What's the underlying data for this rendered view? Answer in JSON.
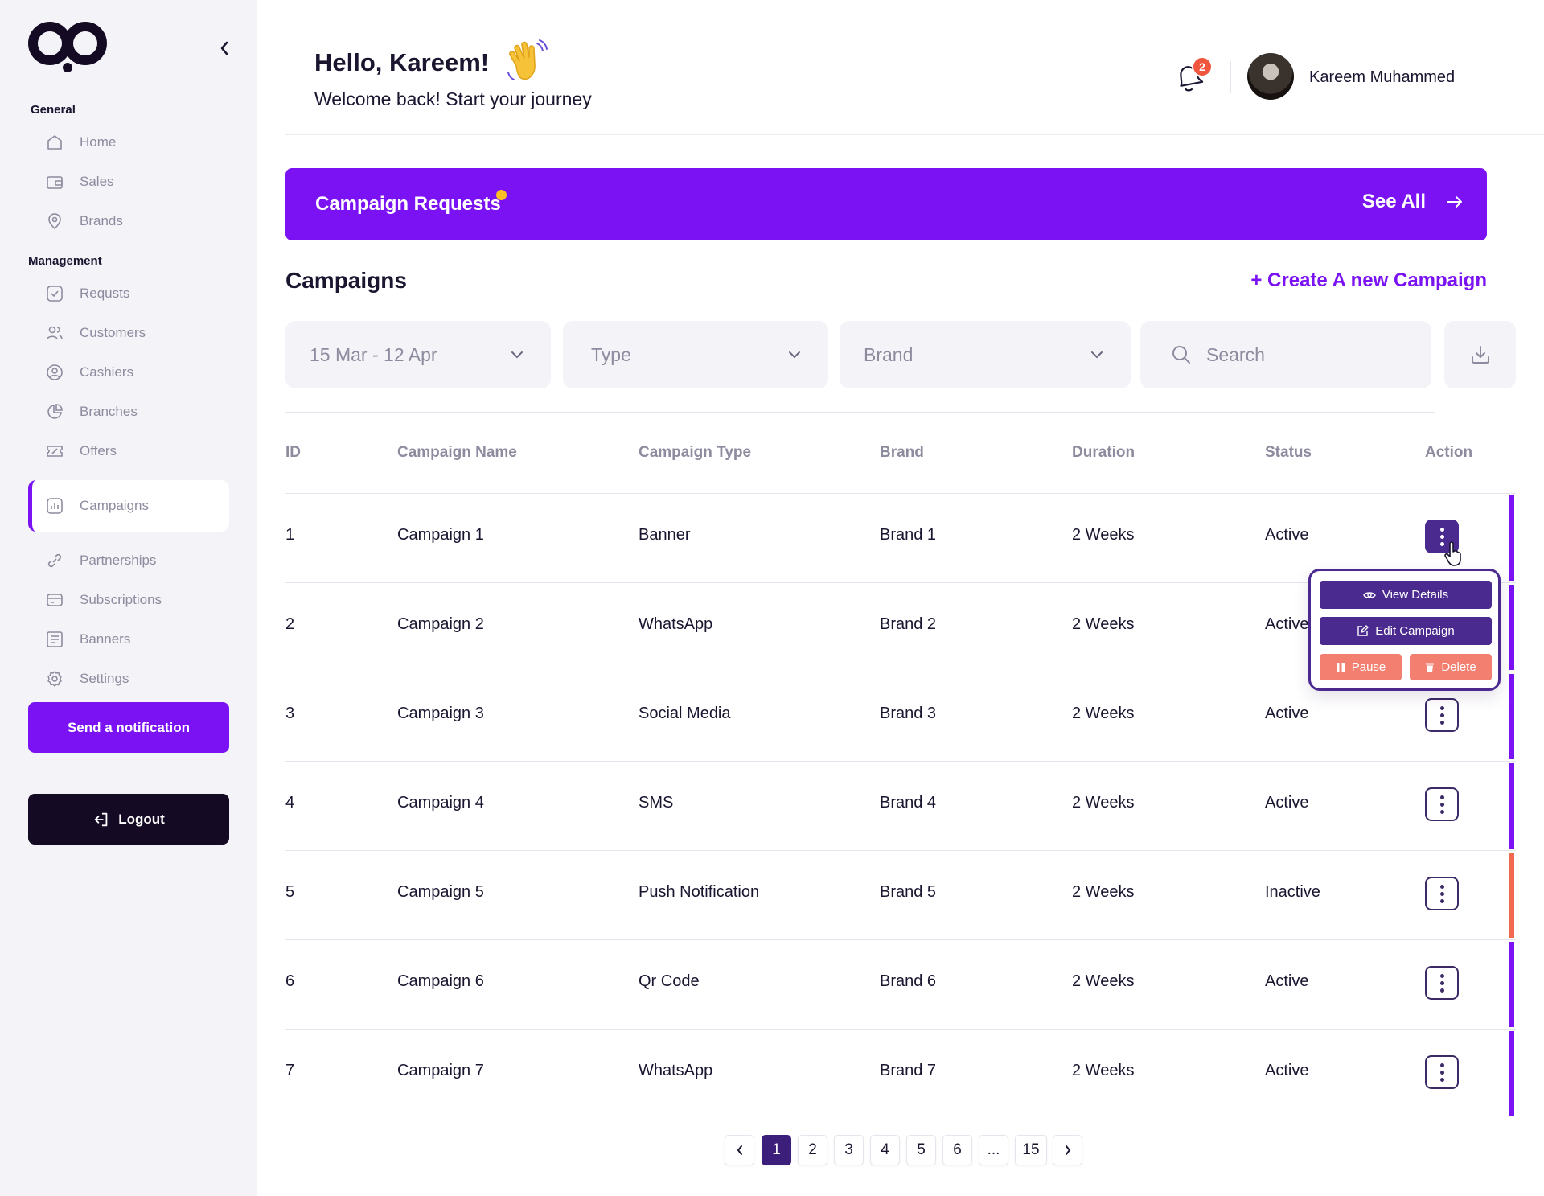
{
  "sidebar": {
    "sections": {
      "general": "General",
      "management": "Management"
    },
    "general_items": [
      {
        "label": "Home",
        "icon": "home-icon"
      },
      {
        "label": "Sales",
        "icon": "wallet-icon"
      },
      {
        "label": "Brands",
        "icon": "tag-icon"
      }
    ],
    "management_items": [
      {
        "label": "Requsts",
        "icon": "checkbox-icon"
      },
      {
        "label": "Customers",
        "icon": "users-icon"
      },
      {
        "label": "Cashiers",
        "icon": "user-circle-icon"
      },
      {
        "label": "Branches",
        "icon": "pie-icon"
      },
      {
        "label": "Offers",
        "icon": "ticket-icon"
      },
      {
        "label": "Campaigns",
        "icon": "chart-icon",
        "active": true
      },
      {
        "label": "Partnerships",
        "icon": "link-icon"
      },
      {
        "label": "Subscriptions",
        "icon": "card-icon"
      },
      {
        "label": "Banners",
        "icon": "newspaper-icon"
      },
      {
        "label": "Settings",
        "icon": "gear-icon"
      }
    ],
    "send_notification": "Send a notification",
    "logout": "Logout"
  },
  "header": {
    "greeting": "Hello, Kareem!",
    "subtitle": "Welcome back! Start your journey",
    "notification_count": "2",
    "user_name": "Kareem Muhammed"
  },
  "banner": {
    "title": "Campaign Requests",
    "see_all": "See All",
    "color": "#7a12f3"
  },
  "campaigns": {
    "title": "Campaigns",
    "create_link": "+ Create A new Campaign",
    "filters": {
      "date": "15 Mar - 12 Apr",
      "type": "Type",
      "brand": "Brand",
      "search_placeholder": "Search"
    },
    "columns": [
      "ID",
      "Campaign Name",
      "Campaign Type",
      "Brand",
      "Duration",
      "Status",
      "Action"
    ],
    "rows": [
      {
        "id": "1",
        "name": "Campaign 1",
        "type": "Banner",
        "brand": "Brand 1",
        "duration": "2 Weeks",
        "status": "Active"
      },
      {
        "id": "2",
        "name": "Campaign 2",
        "type": "WhatsApp",
        "brand": "Brand 2",
        "duration": "2 Weeks",
        "status": "Active"
      },
      {
        "id": "3",
        "name": "Campaign 3",
        "type": "Social Media",
        "brand": "Brand 3",
        "duration": "2 Weeks",
        "status": "Active"
      },
      {
        "id": "4",
        "name": "Campaign 4",
        "type": "SMS",
        "brand": "Brand 4",
        "duration": "2 Weeks",
        "status": "Active"
      },
      {
        "id": "5",
        "name": "Campaign 5",
        "type": "Push Notification",
        "brand": "Brand 5",
        "duration": "2 Weeks",
        "status": "Inactive"
      },
      {
        "id": "6",
        "name": "Campaign 6",
        "type": "Qr Code",
        "brand": "Brand 6",
        "duration": "2 Weeks",
        "status": "Active"
      },
      {
        "id": "7",
        "name": "Campaign 7",
        "type": "WhatsApp",
        "brand": "Brand 7",
        "duration": "2 Weeks",
        "status": "Active"
      }
    ],
    "action_menu": {
      "view_details": "View Details",
      "edit_campaign": "Edit Campaign",
      "pause": "Pause",
      "delete": "Delete"
    },
    "status_colors": {
      "active": "#7a12f3",
      "inactive": "#f06a4f"
    }
  },
  "pagination": {
    "pages": [
      "1",
      "2",
      "3",
      "4",
      "5",
      "6",
      "...",
      "15"
    ],
    "current": "1"
  }
}
